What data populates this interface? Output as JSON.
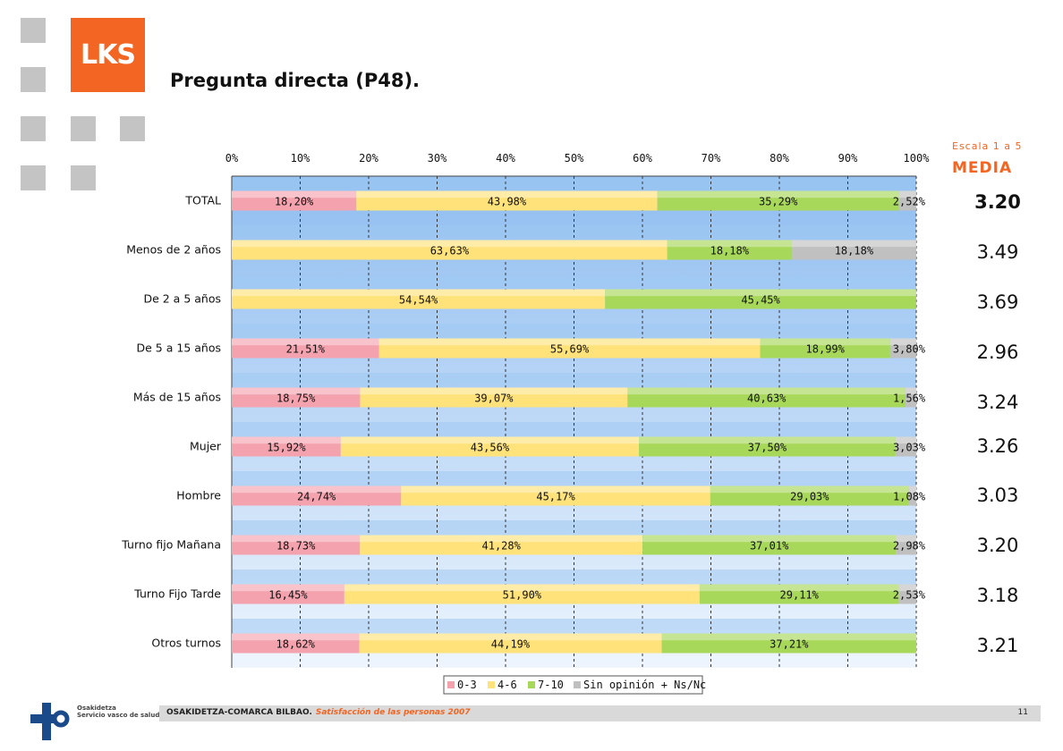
{
  "header": {
    "logo_text": "LKS",
    "title": "Pregunta directa (P48)."
  },
  "media_panel": {
    "scale_note": "Escala 1 a 5",
    "title": "MEDIA",
    "values": [
      "3.20",
      "3.49",
      "3.69",
      "2.96",
      "3.24",
      "3.26",
      "3.03",
      "3.20",
      "3.18",
      "3.21"
    ]
  },
  "colors": {
    "cat_0_3": "#f4a3ae",
    "cat_4_6": "#ffe27a",
    "cat_7_10": "#a8d85a",
    "cat_sin_opinion": "#c0c0c0",
    "plot_background": "#a9cdf3",
    "accent": "#f26522"
  },
  "chart_data": {
    "type": "bar",
    "orientation": "horizontal",
    "stacked": "100%",
    "x_ticks": [
      "0%",
      "10%",
      "20%",
      "30%",
      "40%",
      "50%",
      "60%",
      "70%",
      "80%",
      "90%",
      "100%"
    ],
    "xlim": [
      0,
      100
    ],
    "grid": true,
    "legend_position": "bottom",
    "categories": [
      "TOTAL",
      "Menos de  2 años",
      "De 2 a 5 años",
      "De 5 a 15 años",
      "Más de 15 años",
      "Mujer",
      "Hombre",
      "Turno fijo Mañana",
      "Turno Fijo Tarde",
      "Otros turnos"
    ],
    "series": [
      {
        "name": "0-3",
        "values": [
          18.2,
          0,
          0,
          21.51,
          18.75,
          15.92,
          24.74,
          18.73,
          16.45,
          18.62
        ],
        "labels": [
          "18,20%",
          "",
          "",
          "21,51%",
          "18,75%",
          "15,92%",
          "24,74%",
          "18,73%",
          "16,45%",
          "18,62%"
        ]
      },
      {
        "name": "4-6",
        "values": [
          43.98,
          63.63,
          54.54,
          55.69,
          39.07,
          43.56,
          45.17,
          41.28,
          51.9,
          44.19
        ],
        "labels": [
          "43,98%",
          "63,63%",
          "54,54%",
          "55,69%",
          "39,07%",
          "43,56%",
          "45,17%",
          "41,28%",
          "51,90%",
          "44,19%"
        ]
      },
      {
        "name": "7-10",
        "values": [
          35.29,
          18.18,
          45.45,
          18.99,
          40.63,
          37.5,
          29.03,
          37.01,
          29.11,
          37.21
        ],
        "labels": [
          "35,29%",
          "18,18%",
          "45,45%",
          "18,99%",
          "40,63%",
          "37,50%",
          "29,03%",
          "37,01%",
          "29,11%",
          "37,21%"
        ]
      },
      {
        "name": "Sin opinión + Ns/Nc",
        "values": [
          2.52,
          18.18,
          0,
          3.8,
          1.56,
          3.03,
          1.08,
          2.98,
          2.53,
          0
        ],
        "labels": [
          "2,52%",
          "18,18%",
          "",
          "3,80%",
          "1,56%",
          "3,03%",
          "1,08%",
          "2,98%",
          "2,53%",
          ""
        ]
      }
    ]
  },
  "footer": {
    "org": "OSAKIDETZA-COMARCA BILBAO.",
    "subtitle": "Satisfacción de las personas 2007",
    "page_number": "11",
    "brand_line1": "Osakidetza",
    "brand_line2": "Servicio vasco de salud"
  }
}
